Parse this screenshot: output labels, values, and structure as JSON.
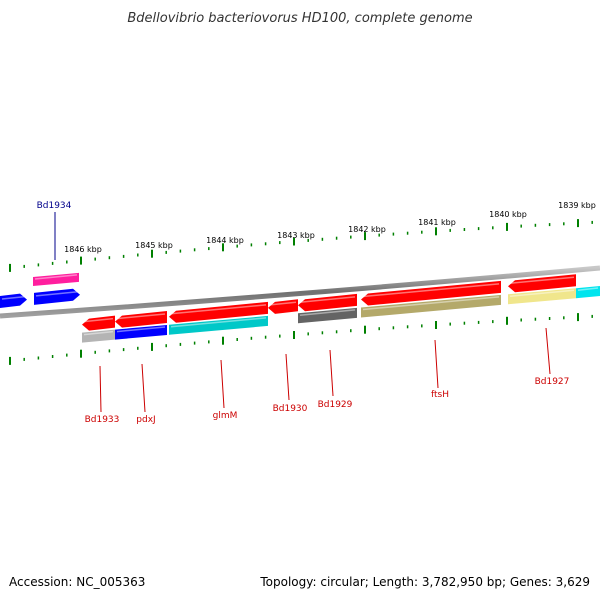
{
  "title": "Bdellovibrio bacteriovorus HD100, complete genome",
  "footer": {
    "accession": "Accession: NC_005363",
    "topology": "Topology: circular; Length: 3,782,950 bp; Genes: 3,629"
  },
  "ticks": [
    {
      "label": "1846 kbp"
    },
    {
      "label": "1845 kbp"
    },
    {
      "label": "1844 kbp"
    },
    {
      "label": "1843 kbp"
    },
    {
      "label": "1842 kbp"
    },
    {
      "label": "1841 kbp"
    },
    {
      "label": "1840 kbp"
    },
    {
      "label": "1839 kbp"
    }
  ],
  "genes": [
    {
      "label": "Bd1934",
      "strand": "+",
      "color": "#ff1e9e"
    },
    {
      "label": "Bd1933",
      "strand": "-",
      "color": "#b4b4b4"
    },
    {
      "label": "pdxJ",
      "strand": "-",
      "color": "#0000ff"
    },
    {
      "label": "glmM",
      "strand": "-",
      "color": "#00c8c8"
    },
    {
      "label": "Bd1930",
      "strand": "-",
      "color": "#ff0000"
    },
    {
      "label": "Bd1929",
      "strand": "-",
      "color": "#646464"
    },
    {
      "label": "ftsH",
      "strand": "-",
      "color": "#b4a96a"
    },
    {
      "label": "Bd1927",
      "strand": "-",
      "color": "#f0e68c"
    }
  ],
  "colors": {
    "cds": "#ff0000",
    "plus_label": "#00008b",
    "minus_label": "#cc0000",
    "tick": "#008000",
    "backbone": "#808080"
  }
}
